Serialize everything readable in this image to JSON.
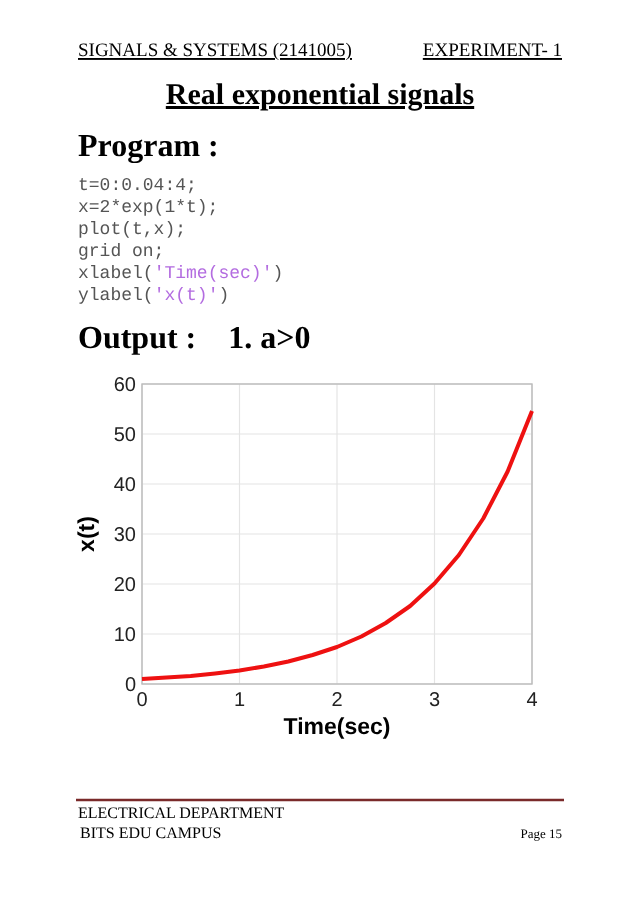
{
  "chart_data": {
    "type": "line",
    "xlabel": "Time(sec)",
    "ylabel": "x(t)",
    "x": [
      0,
      0.25,
      0.5,
      0.75,
      1,
      1.25,
      1.5,
      1.75,
      2,
      2.25,
      2.5,
      2.75,
      3,
      3.25,
      3.5,
      3.75,
      4
    ],
    "series": [
      {
        "color": "#ee1111",
        "values": [
          1,
          1.3,
          1.6,
          2.1,
          2.7,
          3.5,
          4.5,
          5.8,
          7.4,
          9.5,
          12.2,
          15.6,
          20.1,
          25.8,
          33.1,
          42.5,
          54.6
        ]
      }
    ],
    "xlim": [
      0,
      4
    ],
    "xticks": [
      0,
      1,
      2,
      3,
      4
    ],
    "ylim": [
      0,
      60
    ],
    "yticks": [
      0,
      10,
      20,
      30,
      40,
      50,
      60
    ],
    "grid": true,
    "marker": "none",
    "line_style": "solid",
    "annotations": [
      "SIGNALS & SYSTEMS (2141005)",
      "EXPERIMENT- 1",
      "Real exponential signals",
      "Program :",
      "t=0:0.04:4;",
      "x=2*exp(1*t);",
      "plot(t,x);",
      "grid on;",
      "xlabel('Time(sec)')",
      "ylabel('x(t)')",
      "Output :    1. a>0",
      "ELECTRICAL DEPARTMENT",
      "BITS EDU CAMPUS",
      "Page 15"
    ]
  }
}
